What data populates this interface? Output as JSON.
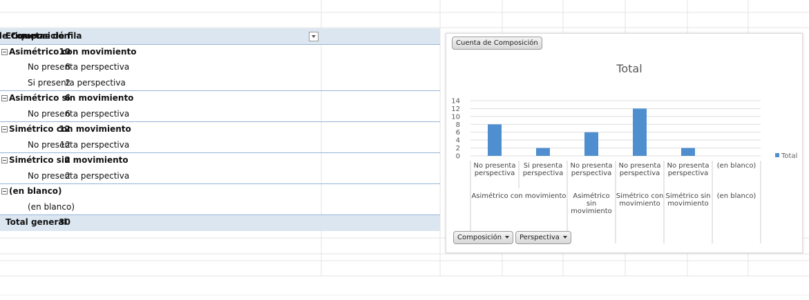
{
  "pivot": {
    "header": [
      "Etiquetas de fila",
      "Cuenta de Composición"
    ],
    "rows": [
      {
        "label": "Asimétrico con movimiento",
        "kind": "group",
        "value": 10
      },
      {
        "label": "No presenta perspectiva",
        "kind": "item",
        "value": 8
      },
      {
        "label": "Si presenta perspectiva",
        "kind": "item",
        "value": 2
      },
      {
        "label": "Asimétrico sin movimiento",
        "kind": "group",
        "value": 6
      },
      {
        "label": "No presenta perspectiva",
        "kind": "item",
        "value": 6
      },
      {
        "label": "Simétrico con movimiento",
        "kind": "group",
        "value": 12
      },
      {
        "label": "No presenta perspectiva",
        "kind": "item",
        "value": 12
      },
      {
        "label": "Simétrico sin movimiento",
        "kind": "group",
        "value": 2
      },
      {
        "label": "No presenta perspectiva",
        "kind": "item",
        "value": 2
      },
      {
        "label": "(en blanco)",
        "kind": "group",
        "value": null
      },
      {
        "label": "(en blanco)",
        "kind": "item",
        "value": null
      }
    ],
    "total": {
      "label": "Total general",
      "value": 30
    }
  },
  "chart_data": {
    "type": "bar",
    "button": "Cuenta de Composición",
    "title": "Total",
    "categories": [
      "No presenta perspectiva",
      "Si presenta perspectiva",
      "No presenta perspectiva",
      "No presenta perspectiva",
      "No presenta perspectiva",
      "(en blanco)"
    ],
    "groups": [
      {
        "label": "Asimétrico con movimiento",
        "span": 2
      },
      {
        "label": "Asimétrico sin movimiento",
        "span": 1
      },
      {
        "label": "Simétrico con movimiento",
        "span": 1
      },
      {
        "label": "Simétrico sin movimiento",
        "span": 1
      },
      {
        "label": "(en blanco)",
        "span": 1
      }
    ],
    "series": [
      {
        "name": "Total",
        "color": "#4f8fd0",
        "values": [
          8,
          2,
          6,
          12,
          2,
          null
        ]
      }
    ],
    "ylim": [
      0,
      14
    ],
    "yticks": [
      0,
      2,
      4,
      6,
      8,
      10,
      12,
      14
    ],
    "grid": true,
    "legend": "right",
    "filters": [
      "Composición",
      "Perspectiva"
    ]
  }
}
